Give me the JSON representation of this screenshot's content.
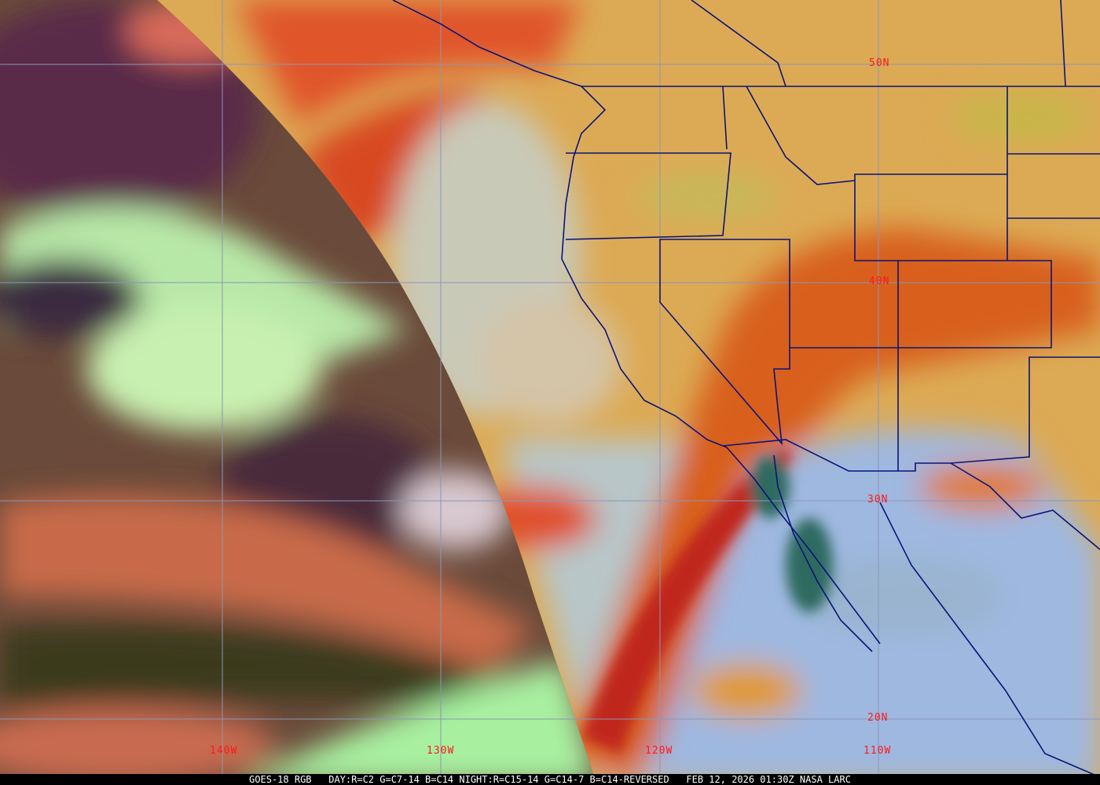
{
  "caption": {
    "satellite": "GOES-18 RGB",
    "recipe": "DAY:R=C2 G=C7-14 B=C14 NIGHT:R=C15-14 G=C14-7 B=C14-REVERSED",
    "timestamp": "FEB 12, 2026 01:30Z",
    "source": "NASA LARC"
  },
  "latitude_labels": [
    "50N",
    "40N",
    "30N",
    "20N"
  ],
  "longitude_labels": [
    "140W",
    "130W",
    "120W",
    "110W"
  ],
  "colors": {
    "label": "#ff1a1a",
    "gridline": "#8a96b8",
    "borders": "#0a1478",
    "night_side": "#5a3a4a",
    "day_land": "#d9a54a"
  }
}
